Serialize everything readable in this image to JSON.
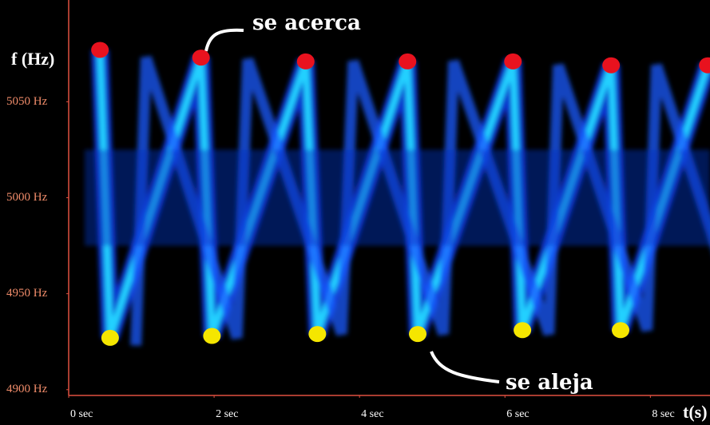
{
  "chart_data": {
    "type": "scatter",
    "y_label": "f (Hz)",
    "x_label": "t(s)",
    "xlim": [
      0,
      8.82
    ],
    "ylim": [
      4897,
      5103
    ],
    "xticks": [
      {
        "value": 0,
        "label": "0  sec"
      },
      {
        "value": 2,
        "label": "2  sec"
      },
      {
        "value": 4,
        "label": "4  sec"
      },
      {
        "value": 6,
        "label": "6  sec"
      },
      {
        "value": 8,
        "label": "8  sec"
      }
    ],
    "yticks": [
      {
        "value": 4900,
        "label": "4900 Hz"
      },
      {
        "value": 4950,
        "label": "4950 Hz"
      },
      {
        "value": 5000,
        "label": "5000 Hz"
      },
      {
        "value": 5050,
        "label": "5050 Hz"
      }
    ],
    "series": [
      {
        "color": "#e8121e",
        "x": [
          0.43,
          1.82,
          3.26,
          4.66,
          6.11,
          7.46,
          8.79
        ],
        "values": [
          5077,
          5073,
          5071,
          5071,
          5071,
          5069,
          5069
        ]
      },
      {
        "color": "#f5e600",
        "x": [
          0.57,
          1.97,
          3.42,
          4.8,
          6.24,
          7.59
        ],
        "values": [
          4927,
          4928,
          4929,
          4929,
          4931,
          4931
        ]
      }
    ],
    "annotations": [
      "se acerca",
      "se aleja"
    ]
  }
}
